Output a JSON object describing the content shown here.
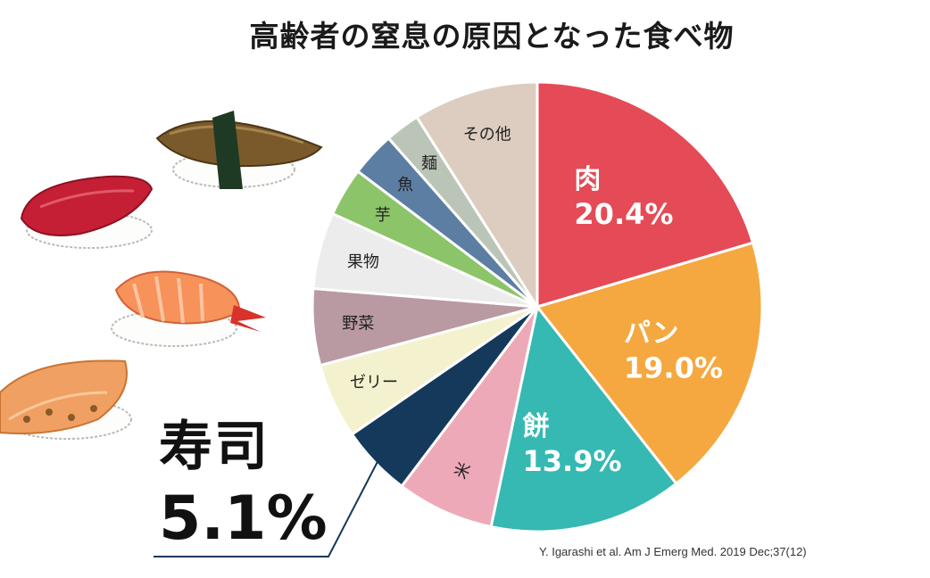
{
  "title": "高齢者の窒息の原因となった食べ物",
  "chart_data": {
    "type": "pie",
    "title": "高齢者の窒息の原因となった食べ物",
    "slices": [
      {
        "label": "肉",
        "value": 20.4,
        "value_label": "20.4%",
        "color": "#e44b56",
        "text_color": "#ffffff",
        "label_style": "large"
      },
      {
        "label": "パン",
        "value": 19.0,
        "value_label": "19.0%",
        "color": "#f5a83f",
        "text_color": "#ffffff",
        "label_style": "large"
      },
      {
        "label": "餅",
        "value": 13.9,
        "value_label": "13.9%",
        "color": "#35b9b2",
        "text_color": "#ffffff",
        "label_style": "large"
      },
      {
        "label": "米",
        "value": 7.0,
        "color": "#eea9b8",
        "text_color": "#222222",
        "label_style": "small"
      },
      {
        "label": "寿司",
        "value": 5.1,
        "value_label": "5.1%",
        "color": "#14395b",
        "text_color": "#111111",
        "label_style": "callout"
      },
      {
        "label": "ゼリー",
        "value": 5.4,
        "color": "#f4f1ce",
        "text_color": "#222222",
        "label_style": "small"
      },
      {
        "label": "野菜",
        "value": 5.5,
        "color": "#b99aa2",
        "text_color": "#222222",
        "label_style": "small"
      },
      {
        "label": "果物",
        "value": 5.5,
        "color": "#ececec",
        "text_color": "#222222",
        "label_style": "small"
      },
      {
        "label": "芋",
        "value": 3.5,
        "color": "#8cc46a",
        "text_color": "#222222",
        "label_style": "small"
      },
      {
        "label": "魚",
        "value": 3.2,
        "color": "#5d7ea3",
        "text_color": "#222222",
        "label_style": "small"
      },
      {
        "label": "麺",
        "value": 2.5,
        "color": "#bac5b8",
        "text_color": "#222222",
        "label_style": "small"
      },
      {
        "label": "その他",
        "value": 9.0,
        "color": "#dccdc0",
        "text_color": "#222222",
        "label_style": "small"
      }
    ]
  },
  "highlight": {
    "name": "寿司",
    "value": "5.1%"
  },
  "citation": "Y. Igarashi et al. Am J Emerg Med. 2019 Dec;37(12)"
}
